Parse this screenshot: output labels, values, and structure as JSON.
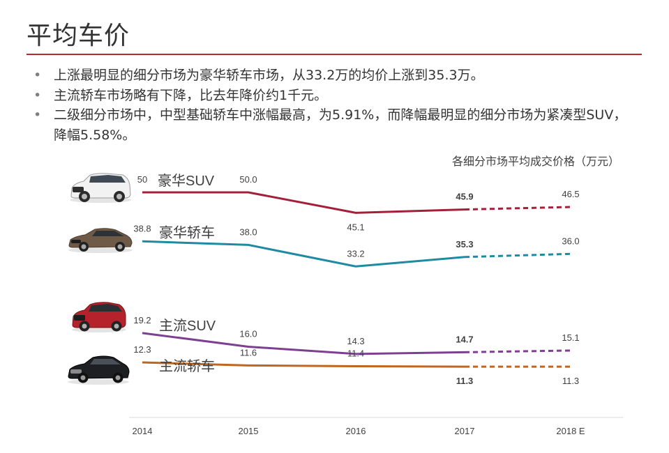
{
  "title": "平均车价",
  "bullets": [
    "上涨最明显的细分市场为豪华轿车市场，从33.2万的均价上涨到35.3万。",
    "主流轿车市场略有下降，比去年降价约1千元。",
    "二级细分市场中，中型基础轿车中涨幅最高，为5.91%，而降幅最明显的细分市场为紧凑型SUV，降幅5.58%。"
  ],
  "chart_data": {
    "type": "line",
    "title": "各细分市场平均成交价格（万元）",
    "categories": [
      "2014",
      "2015",
      "2016",
      "2017",
      "2018 E"
    ],
    "forecast_from_index": 3,
    "grid": false,
    "legend": "inline-left",
    "series": [
      {
        "name": "豪华SUV",
        "color": "#a3203a",
        "values": [
          50,
          50.0,
          45.1,
          45.9,
          46.5
        ],
        "labels": [
          "50",
          "50.0",
          "45.1",
          "45.9",
          "46.5"
        ],
        "icon": "white-luxury-suv-icon"
      },
      {
        "name": "豪华轿车",
        "color": "#1f8ba3",
        "values": [
          38.8,
          38.0,
          33.2,
          35.3,
          36.0
        ],
        "labels": [
          "38.8",
          "38.0",
          "33.2",
          "35.3",
          "36.0"
        ],
        "icon": "bronze-luxury-sedan-icon"
      },
      {
        "name": "主流SUV",
        "color": "#7e3f93",
        "values": [
          19.2,
          16.0,
          14.3,
          14.7,
          15.1
        ],
        "labels": [
          "19.2",
          "16.0",
          "14.3",
          "14.7",
          "15.1"
        ],
        "icon": "red-suv-icon"
      },
      {
        "name": "主流轿车",
        "color": "#c0661f",
        "values": [
          12.3,
          11.6,
          11.4,
          11.3,
          11.3
        ],
        "labels": [
          "12.3",
          "11.6",
          "11.4",
          "11.3",
          "11.3"
        ],
        "icon": "black-sedan-icon"
      }
    ]
  }
}
